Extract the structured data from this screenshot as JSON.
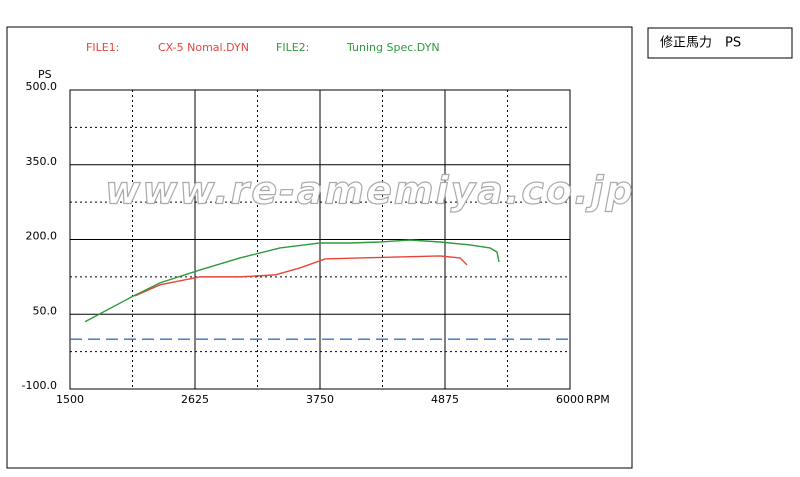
{
  "chart_data": {
    "type": "line",
    "y_axis_label": "PS",
    "x_axis_label": "RPM",
    "side_label": "修正馬力　PS",
    "watermark": "www.re-amemiya.co.jp",
    "xlim": [
      1500,
      6000
    ],
    "xticks": [
      1500,
      2625,
      3750,
      4875,
      6000
    ],
    "x_minor_ticks": [
      2062.5,
      3187.5,
      4312.5,
      5437.5
    ],
    "ylim": [
      -100,
      500
    ],
    "yticks": [
      {
        "value": -100,
        "label": "-100.0"
      },
      {
        "value": 50,
        "label": "50.0"
      },
      {
        "value": 200,
        "label": "200.0"
      },
      {
        "value": 350,
        "label": "350.0"
      },
      {
        "value": 500,
        "label": "500.0"
      }
    ],
    "y_minor_ticks": [
      -25,
      125,
      275,
      425
    ],
    "grid": true,
    "baseline": {
      "value": 0,
      "color": "#3a6fc8"
    },
    "series": [
      {
        "file_label": "FILE1:",
        "name": "CX-5 Nomal.DYN",
        "color": "#e8443a",
        "x": [
          2085,
          2310,
          2670,
          3030,
          3345,
          3570,
          3795,
          4110,
          4470,
          4830,
          5010,
          5073
        ],
        "values": [
          87,
          109,
          125,
          125,
          129,
          143,
          161,
          163,
          165,
          167,
          163,
          149
        ]
      },
      {
        "file_label": "FILE2:",
        "name": "Tuning Spec.DYN",
        "color": "#2f9a3c",
        "x": [
          1635,
          2040,
          2310,
          2670,
          3030,
          3390,
          3750,
          4020,
          4290,
          4560,
          4830,
          5100,
          5280,
          5343,
          5361
        ],
        "values": [
          35,
          83,
          113,
          139,
          163,
          183,
          193,
          193,
          195,
          199,
          195,
          189,
          183,
          175,
          155
        ]
      }
    ]
  }
}
